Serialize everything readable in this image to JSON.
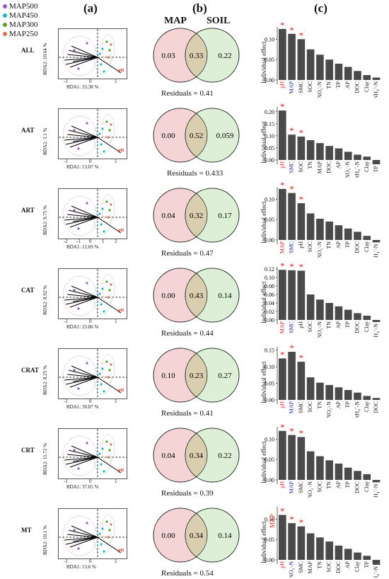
{
  "legend": [
    {
      "label": "MAP500",
      "color": "#9b59b6"
    },
    {
      "label": "MAP450",
      "color": "#1fb5c8"
    },
    {
      "label": "MAP300",
      "color": "#5a9e2e"
    },
    {
      "label": "MAP250",
      "color": "#e07050"
    }
  ],
  "panels": {
    "a": "(a)",
    "b": "(b)",
    "c": "(c)"
  },
  "venn_heads": {
    "map": "MAP",
    "soil": "SOIL"
  },
  "ylabel": "Individual effect",
  "colors": {
    "map_circle": "#f4d4d4",
    "soil_circle": "#ddefd6",
    "overlap": "#d9cfb0",
    "bar": "#4a4a4a",
    "star": "#e0201a",
    "hl_red": "#d42020",
    "hl_blue": "#1a2a9a"
  },
  "groups": [
    {
      "name": "ALL",
      "rda_y": "RDA2: 10.64 %",
      "rda_x": "RDA1: 33.38 %",
      "xticks": [
        "-1",
        "0",
        "1"
      ],
      "map": "0.03",
      "shared": "0.33",
      "soil": "0.22",
      "residuals": "Residuals = 0.41",
      "bars": [
        {
          "l": "pH",
          "v": 0.125,
          "s": true,
          "c": "red"
        },
        {
          "l": "MAP",
          "v": 0.113,
          "s": true,
          "c": "blue"
        },
        {
          "l": "SMC",
          "v": 0.1,
          "s": true
        },
        {
          "l": "SOC",
          "v": 0.075
        },
        {
          "l": "NO3--N",
          "v": 0.062
        },
        {
          "l": "TN",
          "v": 0.05
        },
        {
          "l": "TP",
          "v": 0.04
        },
        {
          "l": "AP",
          "v": 0.032
        },
        {
          "l": "DOC",
          "v": 0.022
        },
        {
          "l": "Clay",
          "v": 0.012
        },
        {
          "l": "NH4+-N",
          "v": 0.006
        }
      ],
      "yticks": [
        "0.00",
        "0.05",
        "0.10"
      ],
      "ymax": 0.13
    },
    {
      "name": "AAT",
      "rda_y": "RDA2: 3.1 %",
      "rda_x": "RDA1: 13.07 %",
      "xticks": [
        "-1",
        "0",
        "1"
      ],
      "map": "0.00",
      "shared": "0.52",
      "soil": "0.059",
      "residuals": "Residuals =  0.433",
      "bars": [
        {
          "l": "pH",
          "v": 0.205,
          "s": true,
          "c": "red"
        },
        {
          "l": "SMC",
          "v": 0.105,
          "s": true,
          "c": "blue"
        },
        {
          "l": "SOC",
          "v": 0.097,
          "s": true
        },
        {
          "l": "TN",
          "v": 0.082
        },
        {
          "l": "MAP",
          "v": 0.07
        },
        {
          "l": "DOC",
          "v": 0.058
        },
        {
          "l": "AP",
          "v": 0.048
        },
        {
          "l": "NO3--N",
          "v": 0.034
        },
        {
          "l": "NH4+-N",
          "v": 0.022
        },
        {
          "l": "Clay",
          "v": 0.014
        },
        {
          "l": "TP",
          "v": -0.018
        }
      ],
      "yticks": [
        "0.00",
        "0.05",
        "0.10",
        "0.15",
        "0.20"
      ],
      "ymax": 0.22
    },
    {
      "name": "ART",
      "rda_y": "RDA2: 9.75 %",
      "rda_x": "RDA1: 12.69 %",
      "xticks": [
        "-2",
        "-1",
        "0",
        "1",
        "2"
      ],
      "map": "0.04",
      "shared": "0.32",
      "soil": "0.17",
      "residuals": "Residuals = 0.47",
      "bars": [
        {
          "l": "MAP",
          "v": 0.125,
          "s": true,
          "c": "red"
        },
        {
          "l": "SMC",
          "v": 0.115,
          "s": true,
          "c": "blue"
        },
        {
          "l": "pH",
          "v": 0.09,
          "s": true
        },
        {
          "l": "SOC",
          "v": 0.065
        },
        {
          "l": "NO3--N",
          "v": 0.052
        },
        {
          "l": "TN",
          "v": 0.045
        },
        {
          "l": "AP",
          "v": 0.036
        },
        {
          "l": "TP",
          "v": 0.028
        },
        {
          "l": "DOC",
          "v": 0.02
        },
        {
          "l": "Clay",
          "v": 0.01
        },
        {
          "l": "NH4+-N",
          "v": -0.006
        }
      ],
      "yticks": [
        "0.00",
        "0.05",
        "0.10"
      ],
      "ymax": 0.13
    },
    {
      "name": "CAT",
      "rda_y": "RDA2: 8.92 %",
      "rda_x": "RDA1: 23.86 %",
      "xticks": [
        "-1",
        "0",
        "1"
      ],
      "map": "0.00",
      "shared": "0.43",
      "soil": "0.14",
      "residuals": "Residuals = 0.44",
      "bars": [
        {
          "l": "MAP",
          "v": 0.118,
          "s": true,
          "c": "red"
        },
        {
          "l": "SMC",
          "v": 0.117,
          "s": true,
          "c": "blue"
        },
        {
          "l": "pH",
          "v": 0.116,
          "s": true
        },
        {
          "l": "SOC",
          "v": 0.06
        },
        {
          "l": "NO3--N",
          "v": 0.048
        },
        {
          "l": "TN",
          "v": 0.04
        },
        {
          "l": "AP",
          "v": 0.032
        },
        {
          "l": "TP",
          "v": 0.024
        },
        {
          "l": "DOC",
          "v": 0.016
        },
        {
          "l": "Clay",
          "v": 0.01
        },
        {
          "l": "NH4+-N",
          "v": -0.005
        }
      ],
      "yticks": [
        "0.00",
        "0.02",
        "0.04",
        "0.06",
        "0.08",
        "0.10",
        "0.12"
      ],
      "ymax": 0.125
    },
    {
      "name": "CRAT",
      "rda_y": "RDA2: 8.25 %",
      "rda_x": "RDA1: 30.87 %",
      "xticks": [
        "-1",
        "0",
        "1"
      ],
      "map": "0.10",
      "shared": "0.23",
      "soil": "0.27",
      "residuals": "Residuals = 0.41",
      "bars": [
        {
          "l": "pH",
          "v": 0.125,
          "s": true,
          "c": "red"
        },
        {
          "l": "MAP",
          "v": 0.145,
          "s": true,
          "c": "blue"
        },
        {
          "l": "SMC",
          "v": 0.115,
          "s": true
        },
        {
          "l": "SOC",
          "v": 0.068
        },
        {
          "l": "TN",
          "v": 0.052
        },
        {
          "l": "NO3--N",
          "v": 0.045
        },
        {
          "l": "AP",
          "v": 0.038
        },
        {
          "l": "TP",
          "v": 0.03
        },
        {
          "l": "NH4+-N",
          "v": 0.022
        },
        {
          "l": "Clay",
          "v": 0.012
        },
        {
          "l": "DOC",
          "v": 0.006
        }
      ],
      "yticks": [
        "0.00",
        "0.05",
        "0.10",
        "0.15"
      ],
      "ymax": 0.16
    },
    {
      "name": "CRT",
      "rda_y": "RDA2: 11.72 %",
      "rda_x": "RDA1: 37.65 %",
      "xticks": [
        "-1",
        "0",
        "1"
      ],
      "map": "0.04",
      "shared": "0.34",
      "soil": "0.22",
      "residuals": "Residuals = 0.39",
      "bars": [
        {
          "l": "pH",
          "v": 0.12,
          "s": true,
          "c": "red"
        },
        {
          "l": "MAP",
          "v": 0.11,
          "s": true,
          "c": "blue"
        },
        {
          "l": "SMC",
          "v": 0.105,
          "s": true
        },
        {
          "l": "NO3--N",
          "v": 0.07
        },
        {
          "l": "SOC",
          "v": 0.058
        },
        {
          "l": "TN",
          "v": 0.048
        },
        {
          "l": "AP",
          "v": 0.04
        },
        {
          "l": "TP",
          "v": 0.03
        },
        {
          "l": "DOC",
          "v": 0.022
        },
        {
          "l": "Clay",
          "v": 0.014
        },
        {
          "l": "NH4+-N",
          "v": -0.006
        }
      ],
      "yticks": [
        "0.00",
        "0.05",
        "0.10"
      ],
      "ymax": 0.13
    },
    {
      "name": "MT",
      "rda_y": "RDA2: 10.1 %",
      "rda_x": "RDA1: 13.6 %",
      "xticks": [
        "-1",
        "0",
        "1"
      ],
      "map": "0.00",
      "shared": "0.34",
      "soil": "0.14",
      "residuals": "Residuals =  0.54",
      "bars": [
        {
          "l": "pH",
          "v": 0.11,
          "s": true,
          "c": "red"
        },
        {
          "l": "NO3--N",
          "v": 0.09,
          "s": true,
          "c": "blue"
        },
        {
          "l": "SMC",
          "v": 0.082,
          "s": true
        },
        {
          "l": "MAP",
          "v": 0.065
        },
        {
          "l": "TN",
          "v": 0.055
        },
        {
          "l": "SOC",
          "v": 0.045
        },
        {
          "l": "DOC",
          "v": 0.035
        },
        {
          "l": "AP",
          "v": 0.027
        },
        {
          "l": "Clay",
          "v": 0.018
        },
        {
          "l": "TP",
          "v": 0.01
        },
        {
          "l": "NH4+-N",
          "v": -0.012
        }
      ],
      "yticks": [
        "0.00",
        "0.05",
        "0.10"
      ],
      "ymax": 0.13,
      "top_label": "MAP"
    }
  ]
}
